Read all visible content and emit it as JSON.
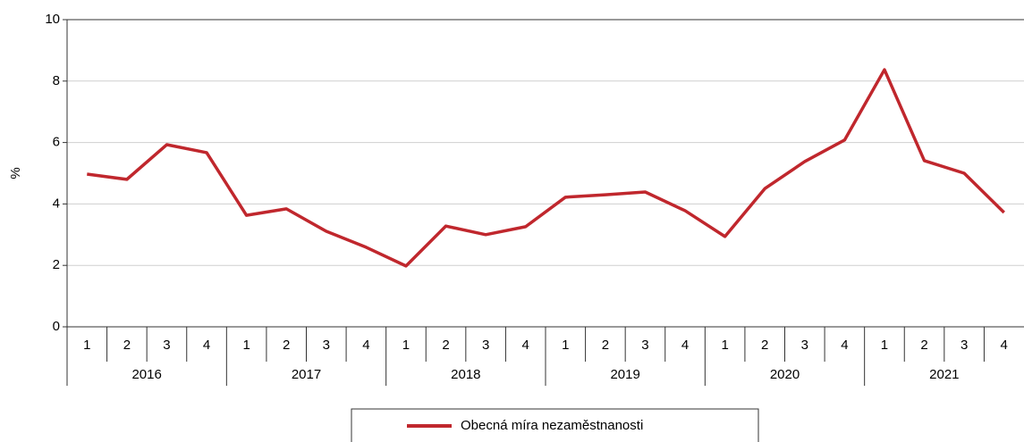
{
  "chart_data": {
    "type": "line",
    "ylabel": "%",
    "categories": [
      "1",
      "2",
      "3",
      "4",
      "1",
      "2",
      "3",
      "4",
      "1",
      "2",
      "3",
      "4",
      "1",
      "2",
      "3",
      "4",
      "1",
      "2",
      "3",
      "4",
      "1",
      "2",
      "3",
      "4"
    ],
    "x_groups": [
      "2016",
      "2017",
      "2018",
      "2019",
      "2020",
      "2021"
    ],
    "series": [
      {
        "name": "Obecná míra nezaměstnanosti",
        "color": "#c0272d",
        "values": [
          4.97,
          4.8,
          5.93,
          5.67,
          3.63,
          3.84,
          3.11,
          2.59,
          1.98,
          3.28,
          3.0,
          3.26,
          4.22,
          4.3,
          4.39,
          3.78,
          2.94,
          4.5,
          5.38,
          6.08,
          8.37,
          5.41,
          5.0,
          3.72
        ]
      }
    ],
    "ylim": [
      0,
      10
    ],
    "yticks": [
      0,
      2,
      4,
      6,
      8,
      10
    ],
    "grid": true,
    "legend": "bottom"
  }
}
